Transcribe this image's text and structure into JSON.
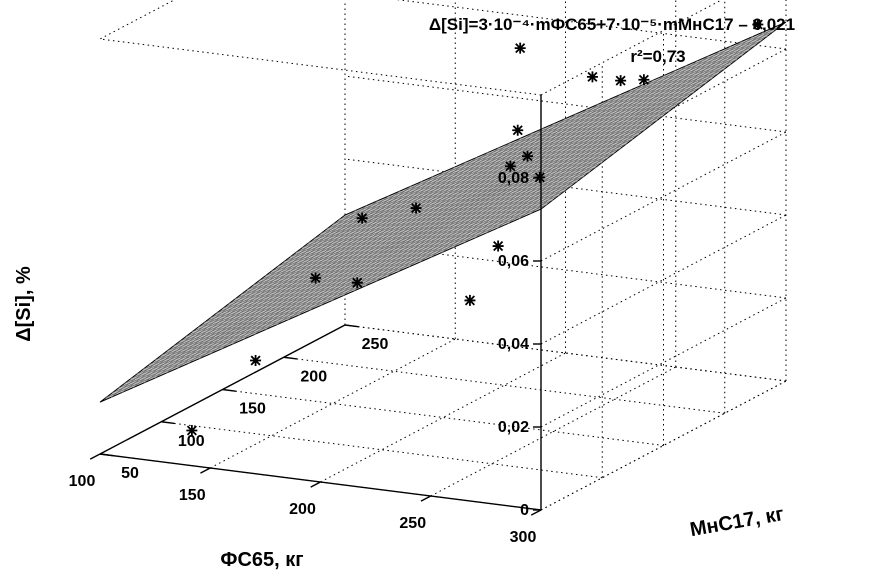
{
  "chart_data": {
    "type": "scatter",
    "subtype": "3d-surface-with-points",
    "equation": "Δ[Si]=3·10⁻⁴·mФС65+7·10⁻⁵·mMнС17 – 0,021",
    "r2": "r²=0,73",
    "xlabel": "ФС65, кг",
    "ylabel": "МнС17, кг",
    "zlabel": "Δ[Si], %",
    "xlim": [
      100,
      300
    ],
    "ylim": [
      50,
      250
    ],
    "zlim": [
      0,
      0.1
    ],
    "x_ticks": [
      "300",
      "250",
      "200",
      "150",
      "100"
    ],
    "y_ticks": [
      "50",
      "100",
      "150",
      "200",
      "250"
    ],
    "z_ticks": [
      "0",
      "0,02",
      "0,04",
      "0,06",
      "0,08"
    ],
    "surface": {
      "a_fs65": 0.0003,
      "b_mns17": 7e-05,
      "c": -0.021
    },
    "grid": true,
    "points": [
      {
        "x": 290,
        "y": 245,
        "z": 0.086
      },
      {
        "x": 255,
        "y": 215,
        "z": 0.075
      },
      {
        "x": 250,
        "y": 205,
        "z": 0.076
      },
      {
        "x": 240,
        "y": 200,
        "z": 0.077
      },
      {
        "x": 230,
        "y": 175,
        "z": 0.056
      },
      {
        "x": 225,
        "y": 150,
        "z": 0.043
      },
      {
        "x": 215,
        "y": 145,
        "z": 0.03
      },
      {
        "x": 205,
        "y": 210,
        "z": 0.054
      },
      {
        "x": 200,
        "y": 205,
        "z": 0.052
      },
      {
        "x": 195,
        "y": 220,
        "z": 0.058
      },
      {
        "x": 185,
        "y": 240,
        "z": 0.074
      },
      {
        "x": 160,
        "y": 200,
        "z": 0.04
      },
      {
        "x": 150,
        "y": 170,
        "z": 0.026
      },
      {
        "x": 130,
        "y": 210,
        "z": 0.034
      },
      {
        "x": 120,
        "y": 190,
        "z": 0.022
      },
      {
        "x": 115,
        "y": 150,
        "z": 0.008
      },
      {
        "x": 100,
        "y": 125,
        "z": -0.006
      }
    ]
  }
}
